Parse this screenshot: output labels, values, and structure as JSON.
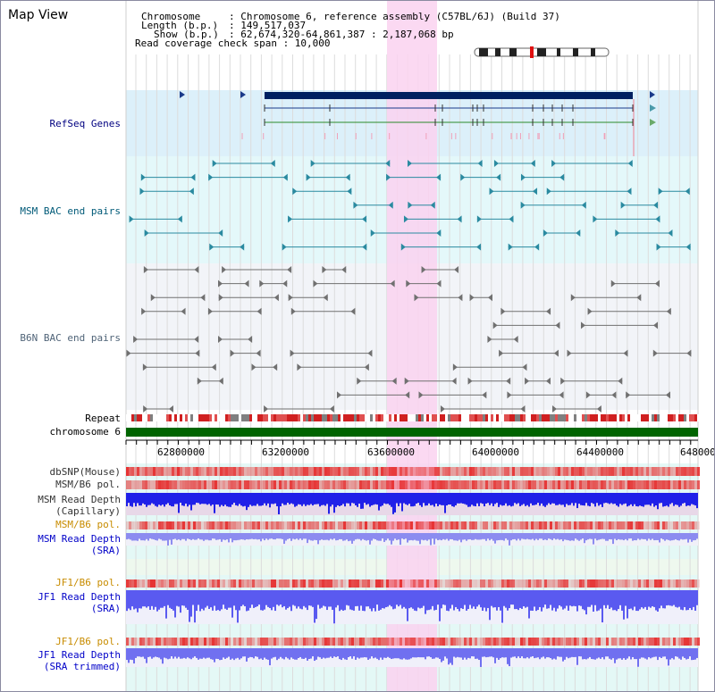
{
  "panel": {
    "title": "Map View"
  },
  "header": {
    "chromosome_key": "Chromosome",
    "chromosome_value": ": Chromosome 6, reference assembly (C57BL/6J) (Build 37)",
    "length_key": "Length (b.p.)",
    "length_value": ": 149,517,037",
    "show_key": "Show (b.p.)",
    "show_value": ": 62,674,320-64,861,387 : 2,187,068 bp",
    "coverage_text": "Read coverage check span : 10,000"
  },
  "tracks": {
    "refseq": "RefSeq Genes",
    "msm_bac": "MSM BAC end pairs",
    "b6n_bac": "B6N BAC end pairs",
    "repeat": "Repeat",
    "chromosome": "chromosome 6",
    "dbsnp": "dbSNP(Mouse)",
    "msm_pol": "MSM/B6 pol.",
    "msm_depth_cap_1": "MSM Read Depth",
    "msm_depth_cap_2": "(Capillary)",
    "msm_pol_sra": "MSM/B6 pol.",
    "msm_depth_sra_1": "MSM Read Depth",
    "msm_depth_sra_2": "(SRA)",
    "jf1_pol": "JF1/B6 pol.",
    "jf1_depth_1": "JF1 Read Depth",
    "jf1_depth_2": "(SRA)",
    "jf1_pol_trim": "JF1/B6 pol.",
    "jf1_trim_1": "JF1 Read Depth",
    "jf1_trim_2": "(SRA trimmed)"
  },
  "ruler": {
    "ticks": [
      "62800000",
      "63200000",
      "63600000",
      "64000000",
      "64400000",
      "648000"
    ]
  },
  "colors": {
    "refseq_bg": "#dcf0fa",
    "msm_bg": "#e4f8fa",
    "b6n_bg": "#f2f4f8",
    "lower_bg": "#e4f8f6",
    "highlight": "#fad2f0",
    "refseq_label": "#000080",
    "msm_label": "#005a78",
    "b6n_label": "#506478",
    "orange_label": "#c88c00",
    "blue_label": "#0000c8",
    "chromosome_green": "#006400",
    "depth_blue": "#3c3cf0",
    "depth_light": "#8c8cf0"
  }
}
